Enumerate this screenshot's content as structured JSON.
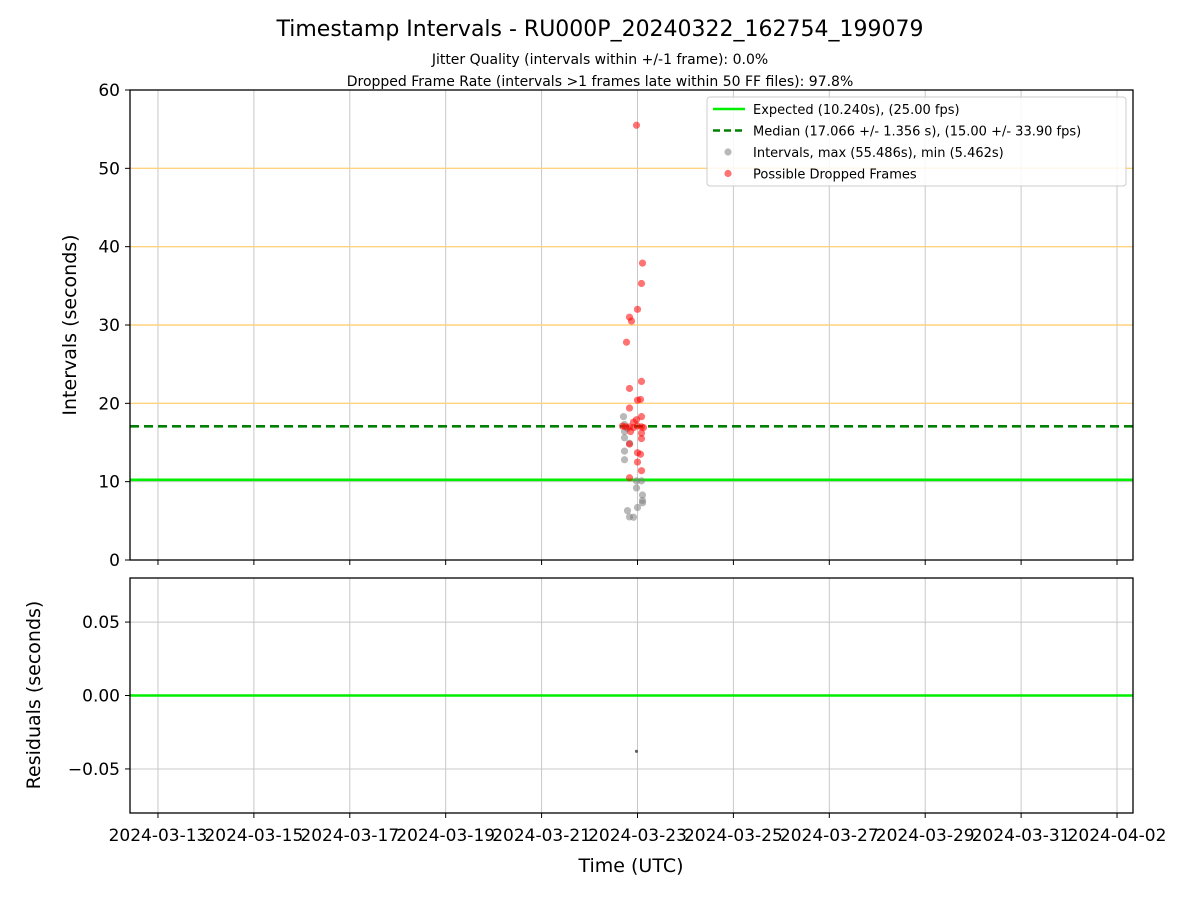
{
  "chart_data": [
    {
      "type": "scatter",
      "panel": "intervals",
      "title": "Timestamp Intervals - RU000P_20240322_162754_199079",
      "subtitle_1": "Jitter Quality (intervals within +/-1 frame): 0.0%",
      "subtitle_2": "Dropped Frame Rate (intervals >1 frames late within 50 FF files): 97.8%",
      "ylabel": "Intervals (seconds)",
      "ylim": [
        0,
        60
      ],
      "yticks": [
        "0",
        "10",
        "20",
        "30",
        "40",
        "50",
        "60"
      ],
      "grid": true,
      "threshold_lines": [
        20,
        30,
        40,
        50
      ],
      "legend_position": "top-right",
      "reference_lines": [
        {
          "name": "Expected (10.240s), (25.00 fps)",
          "y": 10.24,
          "color": "#00ee00",
          "style": "solid"
        },
        {
          "name": "Median (17.066 +/- 1.356 s), (15.00 +/- 33.90 fps)",
          "y": 17.066,
          "color": "#008000",
          "style": "dashed"
        }
      ],
      "series": [
        {
          "name": "Intervals, max (55.486s), min (5.462s)",
          "color": "#808080",
          "points": [
            [
              "2024-03-22T20:00",
              5.5
            ],
            [
              "2024-03-22T22:00",
              5.46
            ],
            [
              "2024-03-22T19:00",
              6.3
            ],
            [
              "2024-03-23T00:00",
              6.7
            ],
            [
              "2024-03-23T02:30",
              7.3
            ],
            [
              "2024-03-23T02:30",
              7.6
            ],
            [
              "2024-03-23T02:30",
              8.3
            ],
            [
              "2024-03-22T23:30",
              9.2
            ],
            [
              "2024-03-22T23:30",
              10.1
            ],
            [
              "2024-03-23T02:00",
              10.1
            ],
            [
              "2024-03-22T17:30",
              12.8
            ],
            [
              "2024-03-22T17:30",
              13.9
            ],
            [
              "2024-03-22T20:00",
              14.9
            ],
            [
              "2024-03-22T17:30",
              15.6
            ],
            [
              "2024-03-22T17:30",
              16.4
            ],
            [
              "2024-03-22T19:00",
              16.8
            ],
            [
              "2024-03-22T17:30",
              17.3
            ],
            [
              "2024-03-22T17:00",
              18.3
            ]
          ]
        },
        {
          "name": "Possible Dropped Frames",
          "color": "#ff0000",
          "points": [
            [
              "2024-03-22T23:30",
              55.5
            ],
            [
              "2024-03-23T02:30",
              37.9
            ],
            [
              "2024-03-23T02:00",
              35.3
            ],
            [
              "2024-03-23T00:00",
              32.0
            ],
            [
              "2024-03-22T20:00",
              31.0
            ],
            [
              "2024-03-22T21:00",
              30.5
            ],
            [
              "2024-03-22T18:30",
              27.8
            ],
            [
              "2024-03-23T02:00",
              22.8
            ],
            [
              "2024-03-22T20:00",
              21.9
            ],
            [
              "2024-03-23T01:30",
              20.5
            ],
            [
              "2024-03-23T00:00",
              20.4
            ],
            [
              "2024-03-22T20:00",
              19.4
            ],
            [
              "2024-03-23T02:00",
              18.3
            ],
            [
              "2024-03-22T23:30",
              17.9
            ],
            [
              "2024-03-22T22:00",
              17.6
            ],
            [
              "2024-03-22T16:30",
              17.1
            ],
            [
              "2024-03-22T18:00",
              17.0
            ],
            [
              "2024-03-22T20:00",
              17.0
            ],
            [
              "2024-03-22T22:00",
              16.9
            ],
            [
              "2024-03-23T00:00",
              17.1
            ],
            [
              "2024-03-23T02:00",
              17.0
            ],
            [
              "2024-03-23T03:00",
              16.9
            ],
            [
              "2024-03-22T20:30",
              16.4
            ],
            [
              "2024-03-23T02:00",
              16.2
            ],
            [
              "2024-03-23T02:00",
              15.5
            ],
            [
              "2024-03-22T20:00",
              14.8
            ],
            [
              "2024-03-23T00:00",
              13.7
            ],
            [
              "2024-03-23T01:30",
              13.5
            ],
            [
              "2024-03-23T00:00",
              12.5
            ],
            [
              "2024-03-23T02:00",
              11.4
            ],
            [
              "2024-03-22T20:00",
              10.5
            ]
          ]
        }
      ]
    },
    {
      "type": "scatter",
      "panel": "residuals",
      "xlabel": "Time (UTC)",
      "ylabel": "Residuals (seconds)",
      "ylim": [
        -0.08,
        0.08
      ],
      "yticks": [
        "−0.05",
        "0.00",
        "0.05"
      ],
      "xlim": [
        "2024-03-12T10:00",
        "2024-04-02T08:00"
      ],
      "xticks": [
        "2024-03-13",
        "2024-03-15",
        "2024-03-17",
        "2024-03-19",
        "2024-03-21",
        "2024-03-23",
        "2024-03-25",
        "2024-03-27",
        "2024-03-29",
        "2024-03-31",
        "2024-04-02"
      ],
      "grid": true,
      "reference_line": {
        "y": 0.0,
        "color": "#00ee00"
      },
      "points": [
        [
          "2024-03-22T23:30",
          -0.038
        ]
      ]
    }
  ]
}
